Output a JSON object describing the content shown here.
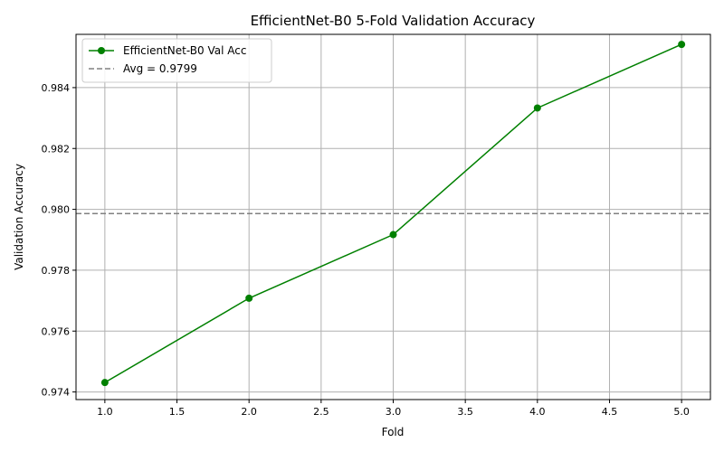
{
  "chart_data": {
    "type": "line",
    "title": "EfficientNet-B0 5-Fold Validation Accuracy",
    "xlabel": "Fold",
    "ylabel": "Validation Accuracy",
    "xlim": [
      0.8,
      5.2
    ],
    "ylim": [
      0.97375,
      0.98575
    ],
    "x_ticks": [
      1.0,
      1.5,
      2.0,
      2.5,
      3.0,
      3.5,
      4.0,
      4.5,
      5.0
    ],
    "x_tick_labels": [
      "1.0",
      "1.5",
      "2.0",
      "2.5",
      "3.0",
      "3.5",
      "4.0",
      "4.5",
      "5.0"
    ],
    "y_ticks": [
      0.974,
      0.976,
      0.978,
      0.98,
      0.982,
      0.984
    ],
    "y_tick_labels": [
      "0.974",
      "0.976",
      "0.978",
      "0.980",
      "0.982",
      "0.984"
    ],
    "grid": true,
    "legend_position": "top-left",
    "series": [
      {
        "name": "EfficientNet-B0 Val Acc",
        "color": "#008000",
        "marker": "circle",
        "x": [
          1,
          2,
          3,
          4,
          5
        ],
        "y": [
          0.97431,
          0.97708,
          0.97917,
          0.98333,
          0.98542
        ]
      }
    ],
    "reference_lines": [
      {
        "name": "Avg = 0.9799",
        "orientation": "horizontal",
        "value": 0.97986,
        "color": "#808080",
        "style": "dashed"
      }
    ]
  }
}
